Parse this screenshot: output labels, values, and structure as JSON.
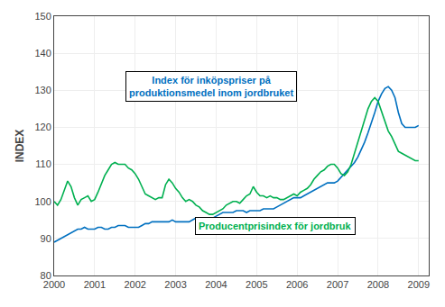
{
  "chart_data": {
    "type": "line",
    "ylabel": "INDEX",
    "x": [
      2000,
      2000.0833333333333,
      2000.1666666666667,
      2000.25,
      2000.3333333333333,
      2000.4166666666667,
      2000.5,
      2000.5833333333333,
      2000.6666666666667,
      2000.75,
      2000.8333333333333,
      2000.9166666666667,
      2001,
      2001.0833333333333,
      2001.1666666666667,
      2001.25,
      2001.3333333333333,
      2001.4166666666667,
      2001.5,
      2001.5833333333333,
      2001.6666666666667,
      2001.75,
      2001.8333333333333,
      2001.9166666666667,
      2002,
      2002.0833333333333,
      2002.1666666666667,
      2002.25,
      2002.3333333333333,
      2002.4166666666667,
      2002.5,
      2002.5833333333333,
      2002.6666666666667,
      2002.75,
      2002.8333333333333,
      2002.9166666666667,
      2003,
      2003.0833333333333,
      2003.1666666666667,
      2003.25,
      2003.3333333333333,
      2003.4166666666667,
      2003.5,
      2003.5833333333333,
      2003.6666666666667,
      2003.75,
      2003.8333333333333,
      2003.9166666666667,
      2004,
      2004.0833333333333,
      2004.1666666666667,
      2004.25,
      2004.3333333333333,
      2004.4166666666667,
      2004.5,
      2004.5833333333333,
      2004.6666666666667,
      2004.75,
      2004.8333333333333,
      2004.9166666666667,
      2005,
      2005.0833333333333,
      2005.1666666666667,
      2005.25,
      2005.3333333333333,
      2005.4166666666667,
      2005.5,
      2005.5833333333333,
      2005.6666666666667,
      2005.75,
      2005.8333333333333,
      2005.9166666666667,
      2006,
      2006.0833333333333,
      2006.1666666666667,
      2006.25,
      2006.3333333333333,
      2006.4166666666667,
      2006.5,
      2006.5833333333333,
      2006.6666666666667,
      2006.75,
      2006.8333333333333,
      2006.9166666666667,
      2007,
      2007.0833333333333,
      2007.1666666666667,
      2007.25,
      2007.3333333333333,
      2007.4166666666667,
      2007.5,
      2007.5833333333333,
      2007.6666666666667,
      2007.75,
      2007.8333333333333,
      2007.9166666666667,
      2008,
      2008.0833333333333,
      2008.1666666666667,
      2008.25,
      2008.3333333333333,
      2008.4166666666667,
      2008.5,
      2008.5833333333333,
      2008.6666666666667,
      2008.75,
      2008.8333333333333,
      2008.9166666666667,
      2009
    ],
    "series": [
      {
        "color": "#0070C0",
        "values": [
          89.0,
          89.5,
          90.0,
          90.5,
          91.0,
          91.5,
          92.0,
          92.5,
          92.5,
          93.0,
          92.5,
          92.5,
          92.5,
          93.0,
          93.0,
          92.5,
          92.5,
          93.0,
          93.0,
          93.5,
          93.5,
          93.5,
          93.0,
          93.0,
          93.0,
          93.0,
          93.5,
          94.0,
          94.0,
          94.5,
          94.5,
          94.5,
          94.5,
          94.5,
          94.5,
          95.0,
          94.5,
          94.5,
          94.5,
          94.5,
          94.5,
          95.0,
          95.5,
          95.0,
          95.0,
          95.5,
          95.5,
          95.5,
          96.0,
          96.5,
          97.0,
          97.0,
          97.0,
          97.0,
          97.5,
          97.5,
          97.5,
          97.0,
          97.5,
          97.5,
          97.5,
          97.5,
          98.0,
          98.0,
          98.0,
          98.0,
          98.5,
          99.0,
          99.5,
          100.0,
          100.5,
          101.0,
          101.0,
          101.0,
          101.5,
          102.0,
          102.5,
          103.0,
          103.5,
          104.0,
          104.5,
          105.0,
          105.0,
          105.0,
          105.5,
          106.5,
          107.5,
          108.5,
          109.5,
          110.5,
          112.0,
          114.0,
          116.0,
          118.5,
          121.0,
          124.0,
          127.0,
          129.0,
          130.5,
          131.0,
          130.0,
          128.0,
          124.0,
          121.0,
          120.0,
          120.0,
          120.0,
          120.0,
          120.5
        ]
      },
      {
        "color": "#00B050",
        "values": [
          100.0,
          99.0,
          100.5,
          103.0,
          105.5,
          104.0,
          101.0,
          99.0,
          100.5,
          101.0,
          101.5,
          100.0,
          100.5,
          102.5,
          105.0,
          107.0,
          108.5,
          110.0,
          110.5,
          110.0,
          110.0,
          110.0,
          109.0,
          108.5,
          107.5,
          106.0,
          104.0,
          102.0,
          101.5,
          101.0,
          100.5,
          101.0,
          101.0,
          104.5,
          106.0,
          105.0,
          103.5,
          102.5,
          101.0,
          100.0,
          100.5,
          100.0,
          99.0,
          98.5,
          97.5,
          97.0,
          96.5,
          96.5,
          97.0,
          97.5,
          98.0,
          99.0,
          99.5,
          100.0,
          100.0,
          99.5,
          100.5,
          101.5,
          102.0,
          104.0,
          102.5,
          101.5,
          101.5,
          101.0,
          101.5,
          101.0,
          101.0,
          100.5,
          100.5,
          101.0,
          101.5,
          102.0,
          101.5,
          102.5,
          103.0,
          103.5,
          104.5,
          106.0,
          107.0,
          108.0,
          108.5,
          109.5,
          110.0,
          110.0,
          109.0,
          107.5,
          107.0,
          108.0,
          110.0,
          113.0,
          116.0,
          119.5,
          122.0,
          125.0,
          127.0,
          128.0,
          127.0,
          124.5,
          121.5,
          119.0,
          117.5,
          115.5,
          113.5,
          113.0,
          112.5,
          112.0,
          111.5,
          111.0,
          111.0
        ]
      }
    ],
    "xlim": [
      2000.0,
      2009.25
    ],
    "xticks": [
      2000,
      2001,
      2002,
      2003,
      2004,
      2005,
      2006,
      2007,
      2008,
      2009
    ],
    "ylim": [
      80,
      150
    ],
    "yticks": [
      80,
      90,
      100,
      110,
      120,
      130,
      140,
      150
    ],
    "grid": true,
    "annotations": [
      {
        "text": "Index för inköpspriser på\nproduktionsmedel inom jordbruket",
        "color": "#0070C0"
      },
      {
        "text": "Producentprisindex för jordbruk",
        "color": "#00B050"
      }
    ]
  }
}
